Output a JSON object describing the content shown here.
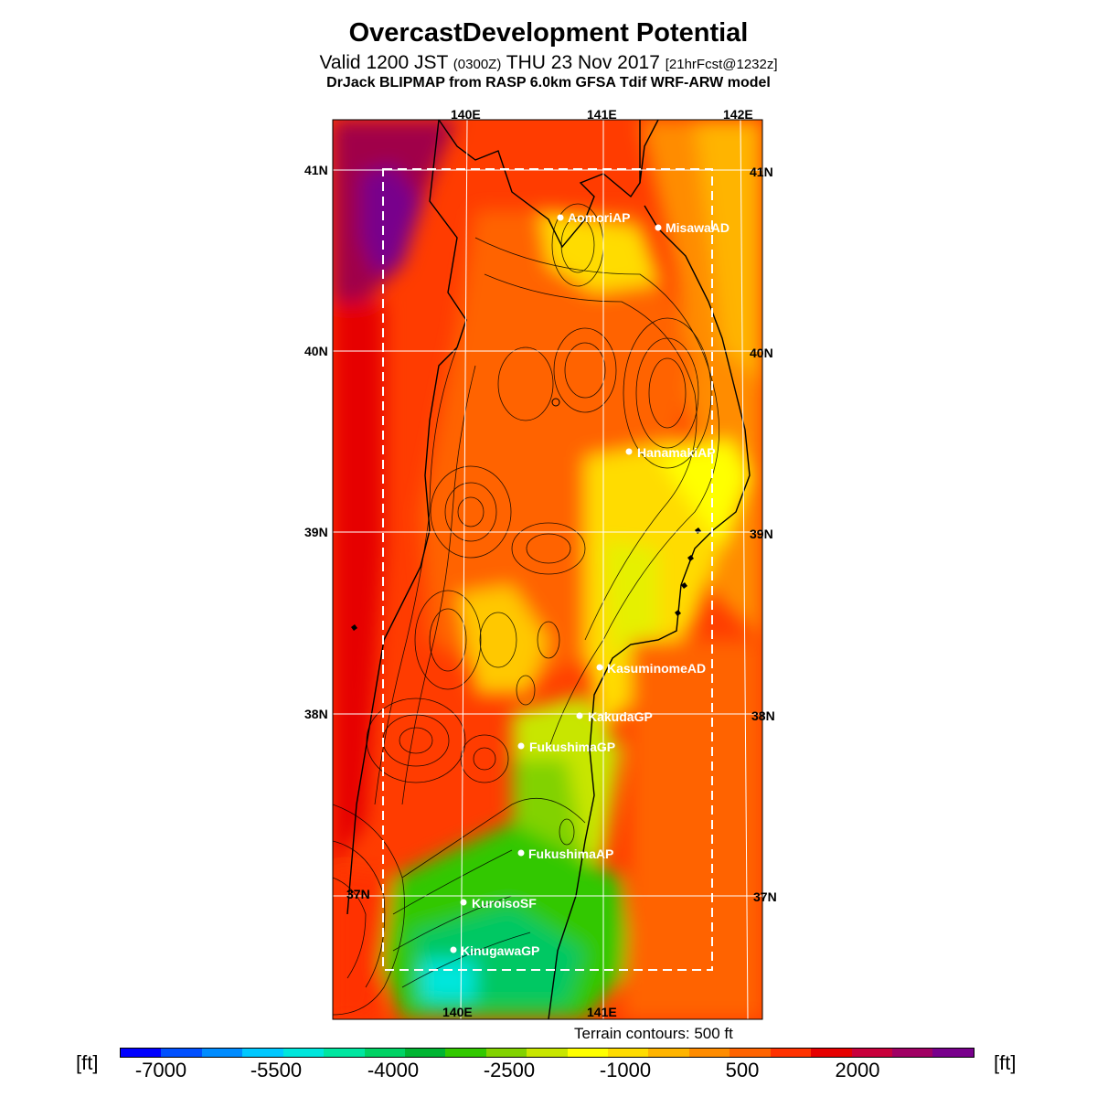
{
  "header": {
    "title": "OvercastDevelopment Potential",
    "valid_prefix": "Valid 1200 JST",
    "valid_zulu": "(0300Z)",
    "valid_date": "THU 23 Nov 2017",
    "forecast_info": "[21hrFcst@1232z]",
    "model_line": "DrJack BLIPMAP from RASP 6.0km GFSA Tdif WRF-ARW model"
  },
  "axes": {
    "lon_top": [
      "140E",
      "141E",
      "142E"
    ],
    "lon_bottom": [
      "140E",
      "141E"
    ],
    "lat_left": [
      "41N",
      "40N",
      "39N",
      "38N",
      "37N"
    ],
    "lat_right": [
      "41N",
      "40N",
      "39N",
      "38N",
      "37N"
    ]
  },
  "stations": [
    {
      "name": "AomoriAP"
    },
    {
      "name": "MisawaAD"
    },
    {
      "name": "HanamakiAP"
    },
    {
      "name": "KasuminomeAD"
    },
    {
      "name": "KakudaGP"
    },
    {
      "name": "FukushimaGP"
    },
    {
      "name": "FukushimaAP"
    },
    {
      "name": "KuroisoSF"
    },
    {
      "name": "KinugawaGP"
    }
  ],
  "terrain_note": "Terrain contours: 500 ft",
  "colorbar": {
    "unit_left": "[ft]",
    "unit_right": "[ft]",
    "tick_labels": [
      "-7000",
      "-5500",
      "-4000",
      "-2500",
      "-1000",
      "500",
      "2000"
    ],
    "colors": [
      "#0000ff",
      "#0050ff",
      "#008cff",
      "#00c8ff",
      "#00e6dc",
      "#00e6a0",
      "#00d264",
      "#00b432",
      "#32c800",
      "#82d200",
      "#c8e600",
      "#ffff00",
      "#ffdc00",
      "#ffb400",
      "#ff8c00",
      "#ff6400",
      "#ff3200",
      "#e60000",
      "#c8003c",
      "#a00064",
      "#78008c"
    ]
  }
}
